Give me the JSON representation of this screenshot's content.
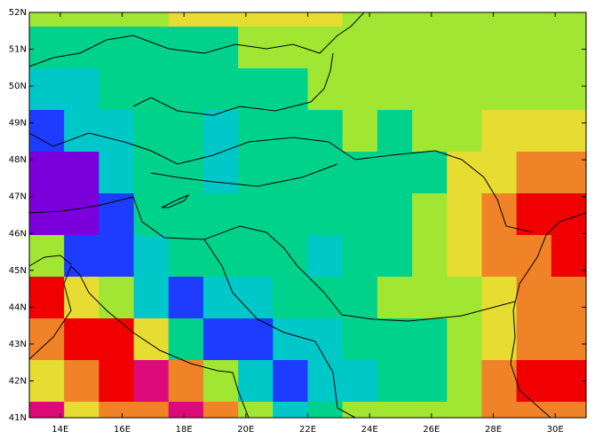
{
  "chart_data": {
    "type": "gridmap",
    "xlim": [
      13,
      31
    ],
    "ylim": [
      41,
      52
    ],
    "xticks": [
      {
        "value": 14,
        "label": "14E"
      },
      {
        "value": 16,
        "label": "16E"
      },
      {
        "value": 18,
        "label": "18E"
      },
      {
        "value": 20,
        "label": "20E"
      },
      {
        "value": 22,
        "label": "22E"
      },
      {
        "value": 24,
        "label": "24E"
      },
      {
        "value": 26,
        "label": "26E"
      },
      {
        "value": 28,
        "label": "28E"
      },
      {
        "value": 30,
        "label": "30E"
      }
    ],
    "yticks": [
      {
        "value": 41,
        "label": "41N"
      },
      {
        "value": 42,
        "label": "42N"
      },
      {
        "value": 43,
        "label": "43N"
      },
      {
        "value": 44,
        "label": "44N"
      },
      {
        "value": 45,
        "label": "45N"
      },
      {
        "value": 46,
        "label": "46N"
      },
      {
        "value": 47,
        "label": "47N"
      },
      {
        "value": 48,
        "label": "48N"
      },
      {
        "value": 49,
        "label": "49N"
      },
      {
        "value": 50,
        "label": "50N"
      },
      {
        "value": 51,
        "label": "51N"
      },
      {
        "value": 52,
        "label": "52N"
      }
    ],
    "cells": [
      [
        "#a0e632",
        "#a0e632",
        "#a0e632",
        "#a0e632",
        "#e6dc32",
        "#e6dc32",
        "#e6dc32",
        "#e6dc32",
        "#e6dc32",
        "#a0e632",
        "#a0e632",
        "#a0e632",
        "#a0e632",
        "#a0e632",
        "#a0e632",
        "#a0e632"
      ],
      [
        "#00d28c",
        "#00d28c",
        "#00d28c",
        "#00d28c",
        "#00d28c",
        "#00d28c",
        "#a0e632",
        "#a0e632",
        "#a0e632",
        "#a0e632",
        "#a0e632",
        "#a0e632",
        "#a0e632",
        "#a0e632",
        "#a0e632",
        "#a0e632"
      ],
      [
        "#00c8c8",
        "#00c8c8",
        "#00d28c",
        "#00d28c",
        "#00d28c",
        "#00d28c",
        "#00d28c",
        "#00d28c",
        "#a0e632",
        "#a0e632",
        "#a0e632",
        "#a0e632",
        "#a0e632",
        "#a0e632",
        "#a0e632",
        "#a0e632"
      ],
      [
        "#1e3cff",
        "#00c8c8",
        "#00c8c8",
        "#00d28c",
        "#00d28c",
        "#00c8c8",
        "#00d28c",
        "#00d28c",
        "#00d28c",
        "#a0e632",
        "#00d28c",
        "#a0e632",
        "#a0e632",
        "#e6dc32",
        "#e6dc32",
        "#e6dc32"
      ],
      [
        "#7b00dc",
        "#7b00dc",
        "#00c8c8",
        "#00d28c",
        "#00d28c",
        "#00c8c8",
        "#00d28c",
        "#00d28c",
        "#00d28c",
        "#00d28c",
        "#00d28c",
        "#00d28c",
        "#e6dc32",
        "#e6dc32",
        "#f08228",
        "#f08228"
      ],
      [
        "#7b00dc",
        "#7b00dc",
        "#1e3cff",
        "#00d28c",
        "#00d28c",
        "#00d28c",
        "#00d28c",
        "#00d28c",
        "#00d28c",
        "#00d28c",
        "#00d28c",
        "#a0e632",
        "#e6dc32",
        "#f08228",
        "#f00000",
        "#f00000"
      ],
      [
        "#a0e632",
        "#1e3cff",
        "#1e3cff",
        "#00c8c8",
        "#00d28c",
        "#00d28c",
        "#00d28c",
        "#00d28c",
        "#00c8c8",
        "#00d28c",
        "#00d28c",
        "#a0e632",
        "#e6dc32",
        "#f08228",
        "#f08228",
        "#f00000"
      ],
      [
        "#f00000",
        "#e6dc32",
        "#a0e632",
        "#00c8c8",
        "#1e3cff",
        "#00c8c8",
        "#00c8c8",
        "#00d28c",
        "#00d28c",
        "#00d28c",
        "#a0e632",
        "#a0e632",
        "#a0e632",
        "#e6dc32",
        "#f08228",
        "#f08228"
      ],
      [
        "#f08228",
        "#f00000",
        "#f00000",
        "#e6dc32",
        "#00d28c",
        "#1e3cff",
        "#1e3cff",
        "#00c8c8",
        "#00c8c8",
        "#00d28c",
        "#00d28c",
        "#00d28c",
        "#a0e632",
        "#e6dc32",
        "#f08228",
        "#f08228"
      ],
      [
        "#e6dc32",
        "#f08228",
        "#f00000",
        "#dc0a78",
        "#f08228",
        "#a0e632",
        "#00c8c8",
        "#1e3cff",
        "#00c8c8",
        "#00c8c8",
        "#00d28c",
        "#00d28c",
        "#a0e632",
        "#f08228",
        "#f00000",
        "#f00000"
      ],
      [
        "#dc0a78",
        "#e6dc32",
        "#f08228",
        "#f08228",
        "#dc0a78",
        "#f08228",
        "#a0e632",
        "#00c8c8",
        "#00d28c",
        "#a0e632",
        "#a0e632",
        "#a0e632",
        "#a0e632",
        "#f08228",
        "#f08228",
        "#f08228"
      ]
    ]
  }
}
